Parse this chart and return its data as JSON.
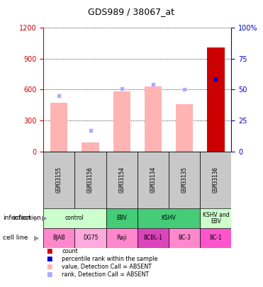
{
  "title": "GDS989 / 38067_at",
  "samples": [
    "GSM33155",
    "GSM33156",
    "GSM33154",
    "GSM33134",
    "GSM33135",
    "GSM33136"
  ],
  "bar_values": [
    470,
    90,
    580,
    630,
    460,
    1010
  ],
  "bar_colors": [
    "#ffb3b3",
    "#ffb3b3",
    "#ffb3b3",
    "#ffb3b3",
    "#ffb3b3",
    "#cc0000"
  ],
  "rank_markers": [
    45,
    17,
    51,
    54,
    50,
    58
  ],
  "rank_marker_colors": [
    "#aaaaff",
    "#aaaaff",
    "#aaaaff",
    "#aaaaff",
    "#aaaaff",
    "#0000cc"
  ],
  "ylim_left": [
    0,
    1200
  ],
  "ylim_right": [
    0,
    100
  ],
  "yticks_left": [
    0,
    300,
    600,
    900,
    1200
  ],
  "yticks_right": [
    0,
    25,
    50,
    75,
    100
  ],
  "ytick_labels_right": [
    "0",
    "25",
    "50",
    "75",
    "100%"
  ],
  "left_axis_color": "#cc0000",
  "right_axis_color": "#0000cc",
  "infection_data": [
    {
      "label": "control",
      "start": 0,
      "end": 2,
      "color": "#ccffcc"
    },
    {
      "label": "EBV",
      "start": 2,
      "end": 3,
      "color": "#44cc77"
    },
    {
      "label": "KSHV",
      "start": 3,
      "end": 5,
      "color": "#44cc77"
    },
    {
      "label": "KSHV and\nEBV",
      "start": 5,
      "end": 6,
      "color": "#ccffcc"
    }
  ],
  "cell_data": [
    {
      "label": "BJAB",
      "start": 0,
      "end": 1,
      "color": "#ff88cc"
    },
    {
      "label": "DG75",
      "start": 1,
      "end": 2,
      "color": "#ffaadd"
    },
    {
      "label": "Raji",
      "start": 2,
      "end": 3,
      "color": "#ff88cc"
    },
    {
      "label": "BCBL-1",
      "start": 3,
      "end": 4,
      "color": "#dd44bb"
    },
    {
      "label": "BC-3",
      "start": 4,
      "end": 5,
      "color": "#ff88cc"
    },
    {
      "label": "BC-1",
      "start": 5,
      "end": 6,
      "color": "#ff55cc"
    }
  ],
  "legend_items": [
    {
      "color": "#cc0000",
      "label": "count"
    },
    {
      "color": "#0000cc",
      "label": "percentile rank within the sample"
    },
    {
      "color": "#ffb3b3",
      "label": "value, Detection Call = ABSENT"
    },
    {
      "color": "#aaaaff",
      "label": "rank, Detection Call = ABSENT"
    }
  ],
  "n_samples": 6
}
